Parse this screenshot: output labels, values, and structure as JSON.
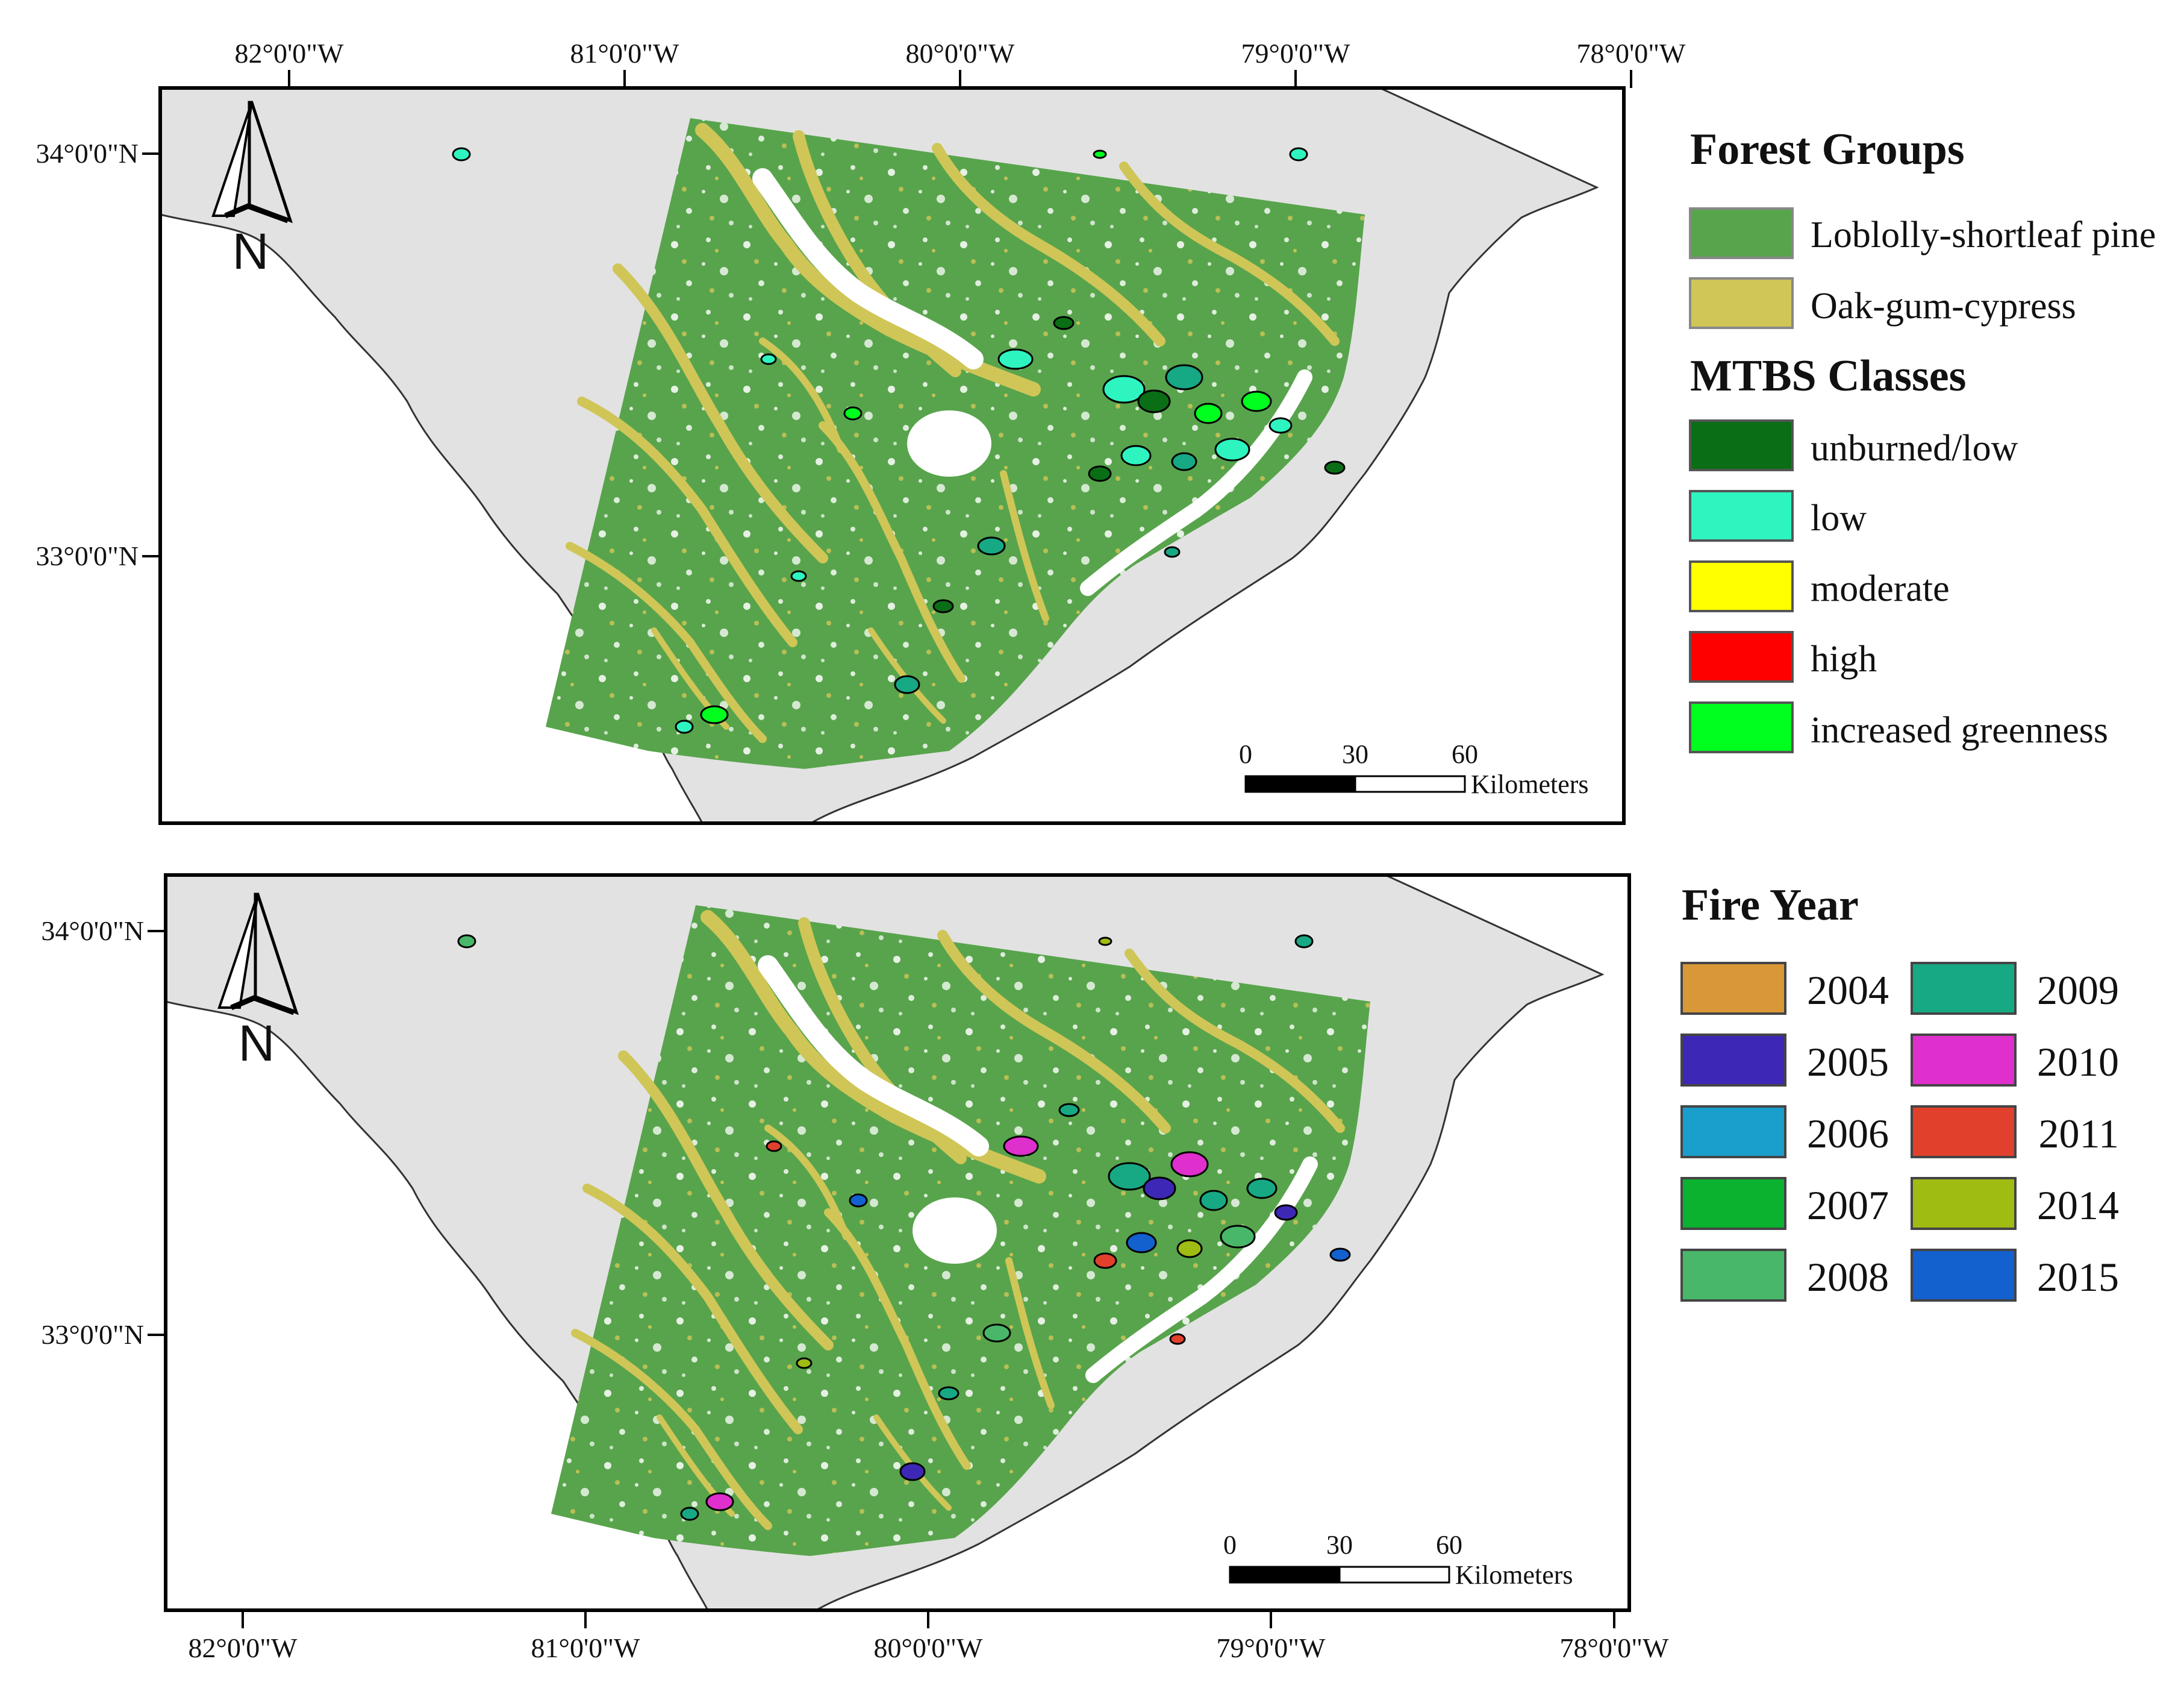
{
  "colors": {
    "land": "#e2e2e2",
    "pine": "#58a44c",
    "oak": "#cfc657",
    "white": "#ffffff"
  },
  "lon_labels": [
    "82°0'0\"W",
    "81°0'0\"W",
    "80°0'0\"W",
    "79°0'0\"W",
    "78°0'0\"W"
  ],
  "lat_labels": [
    "34°0'0\"N",
    "33°0'0\"N"
  ],
  "north_arrow": {
    "letter": "N"
  },
  "scalebar": {
    "ticks": [
      "0",
      "30",
      "60"
    ],
    "unit": "Kilometers"
  },
  "legend_top": {
    "forest_title": "Forest Groups",
    "forest_items": [
      {
        "label": "Loblolly-shortleaf pine",
        "color": "#58a44c"
      },
      {
        "label": "Oak-gum-cypress",
        "color": "#cfc657"
      }
    ],
    "mtbs_title": "MTBS Classes",
    "mtbs_items": [
      {
        "label": "unburned/low",
        "color": "#0a6e16"
      },
      {
        "label": "low",
        "color": "#2ef5c0"
      },
      {
        "label": "moderate",
        "color": "#ffff00"
      },
      {
        "label": "high",
        "color": "#ff0000"
      },
      {
        "label": "increased greenness",
        "color": "#00ff1e"
      }
    ]
  },
  "legend_bottom": {
    "title": "Fire Year",
    "years": [
      {
        "label": "2004",
        "color": "#d89838"
      },
      {
        "label": "2005",
        "color": "#3d28b5"
      },
      {
        "label": "2006",
        "color": "#1a9ecb"
      },
      {
        "label": "2007",
        "color": "#0bb230"
      },
      {
        "label": "2008",
        "color": "#48b769"
      },
      {
        "label": "2009",
        "color": "#16a983"
      },
      {
        "label": "2010",
        "color": "#df2fcc"
      },
      {
        "label": "2011",
        "color": "#e1412c"
      },
      {
        "label": "2014",
        "color": "#9fbc13"
      },
      {
        "label": "2015",
        "color": "#1360cf"
      }
    ]
  },
  "fire_colors_top": [
    "#2ef5c0",
    "#0a6e16",
    "#16a983",
    "#00ff1e",
    "#2ef5c0"
  ],
  "fire_colors_bottom": [
    "#16a983",
    "#3d28b5",
    "#df2fcc",
    "#16a983",
    "#48b769",
    "#1360cf",
    "#e1412c",
    "#9fbc13"
  ]
}
